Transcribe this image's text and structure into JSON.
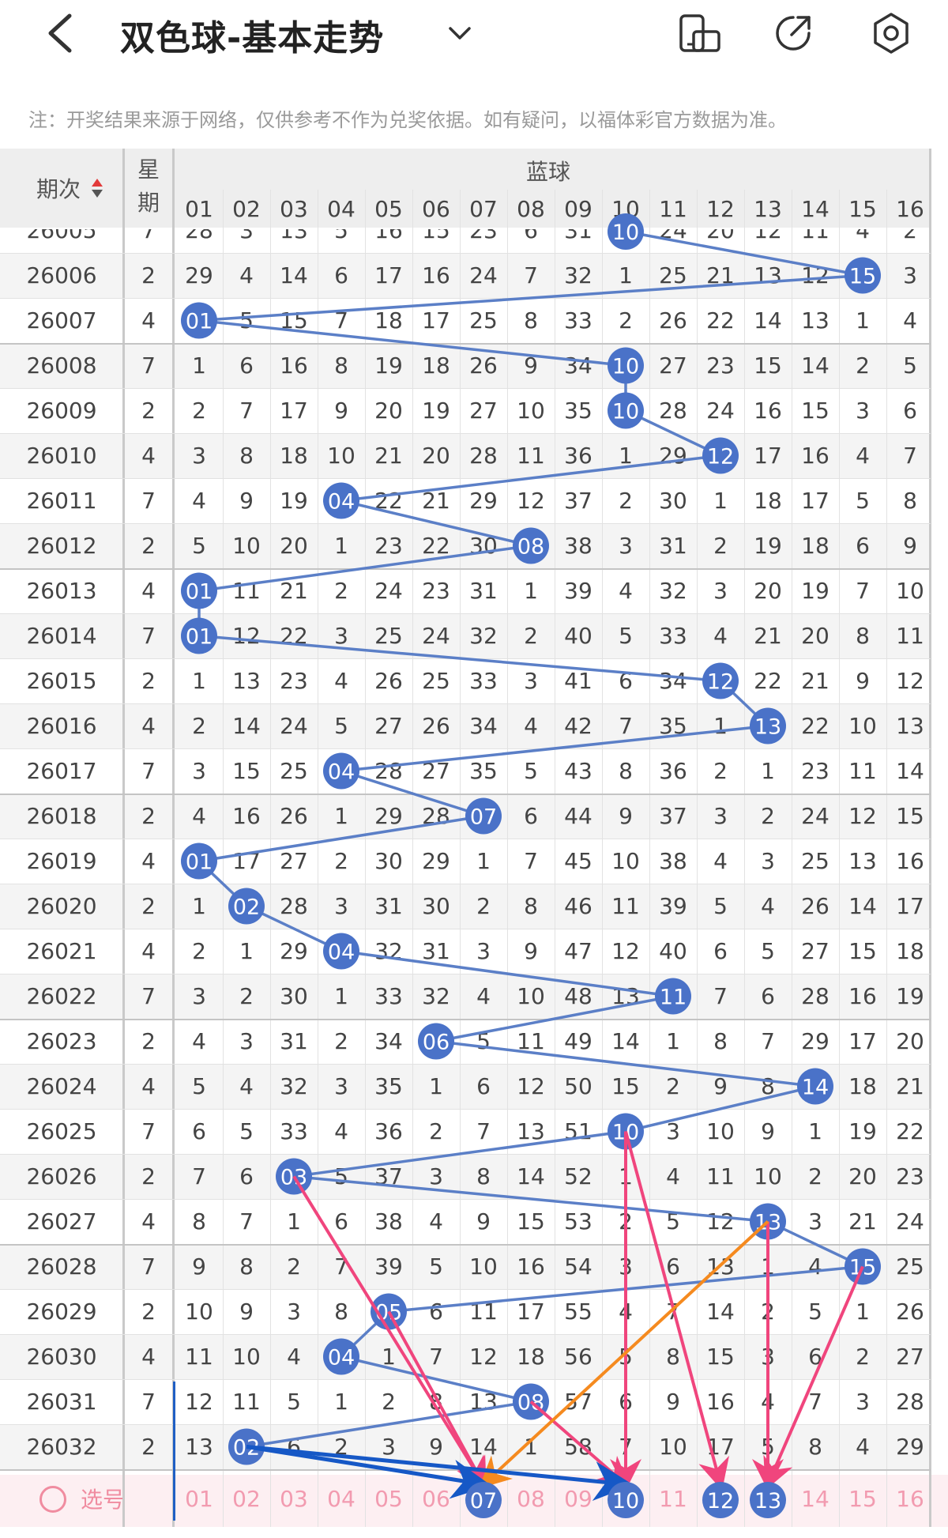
{
  "header": {
    "title": "双色球-基本走势",
    "notice": "注：开奖结果来源于网络，仅供参考不作为兑奖依据。如有疑问，以福体彩官方数据为准。"
  },
  "columns": {
    "period": "期次",
    "week": "星期",
    "blue": "蓝球",
    "numbers": [
      "01",
      "02",
      "03",
      "04",
      "05",
      "06",
      "07",
      "08",
      "09",
      "10",
      "11",
      "12",
      "13",
      "14",
      "15",
      "16"
    ]
  },
  "table": {
    "partial_row": {
      "period": "26005",
      "week": "7",
      "cells": [
        28,
        3,
        13,
        5,
        16,
        15,
        23,
        6,
        31,
        "10",
        24,
        20,
        12,
        11,
        4,
        2
      ]
    },
    "rows": [
      {
        "period": "26006",
        "week": "2",
        "hit": 15,
        "cells": [
          29,
          4,
          14,
          6,
          17,
          16,
          24,
          7,
          32,
          1,
          25,
          21,
          13,
          12,
          "15",
          3
        ]
      },
      {
        "period": "26007",
        "week": "4",
        "hit": 1,
        "cells": [
          "01",
          5,
          15,
          7,
          18,
          17,
          25,
          8,
          33,
          2,
          26,
          22,
          14,
          13,
          1,
          4
        ]
      },
      {
        "period": "26008",
        "week": "7",
        "hit": 10,
        "cells": [
          1,
          6,
          16,
          8,
          19,
          18,
          26,
          9,
          34,
          "10",
          27,
          23,
          15,
          14,
          2,
          5
        ]
      },
      {
        "period": "26009",
        "week": "2",
        "hit": 10,
        "cells": [
          2,
          7,
          17,
          9,
          20,
          19,
          27,
          10,
          35,
          "10",
          28,
          24,
          16,
          15,
          3,
          6
        ]
      },
      {
        "period": "26010",
        "week": "4",
        "hit": 12,
        "cells": [
          3,
          8,
          18,
          10,
          21,
          20,
          28,
          11,
          36,
          1,
          29,
          "12",
          17,
          16,
          4,
          7
        ]
      },
      {
        "period": "26011",
        "week": "7",
        "hit": 4,
        "cells": [
          4,
          9,
          19,
          "04",
          22,
          21,
          29,
          12,
          37,
          2,
          30,
          1,
          18,
          17,
          5,
          8
        ]
      },
      {
        "period": "26012",
        "week": "2",
        "hit": 8,
        "cells": [
          5,
          10,
          20,
          1,
          23,
          22,
          30,
          "08",
          38,
          3,
          31,
          2,
          19,
          18,
          6,
          9
        ]
      },
      {
        "period": "26013",
        "week": "4",
        "hit": 1,
        "cells": [
          "01",
          11,
          21,
          2,
          24,
          23,
          31,
          1,
          39,
          4,
          32,
          3,
          20,
          19,
          7,
          10
        ]
      },
      {
        "period": "26014",
        "week": "7",
        "hit": 1,
        "cells": [
          "01",
          12,
          22,
          3,
          25,
          24,
          32,
          2,
          40,
          5,
          33,
          4,
          21,
          20,
          8,
          11
        ]
      },
      {
        "period": "26015",
        "week": "2",
        "hit": 12,
        "cells": [
          1,
          13,
          23,
          4,
          26,
          25,
          33,
          3,
          41,
          6,
          34,
          "12",
          22,
          21,
          9,
          12
        ]
      },
      {
        "period": "26016",
        "week": "4",
        "hit": 13,
        "cells": [
          2,
          14,
          24,
          5,
          27,
          26,
          34,
          4,
          42,
          7,
          35,
          1,
          "13",
          22,
          10,
          13
        ]
      },
      {
        "period": "26017",
        "week": "7",
        "hit": 4,
        "cells": [
          3,
          15,
          25,
          "04",
          28,
          27,
          35,
          5,
          43,
          8,
          36,
          2,
          1,
          23,
          11,
          14
        ]
      },
      {
        "period": "26018",
        "week": "2",
        "hit": 7,
        "cells": [
          4,
          16,
          26,
          1,
          29,
          28,
          "07",
          6,
          44,
          9,
          37,
          3,
          2,
          24,
          12,
          15
        ]
      },
      {
        "period": "26019",
        "week": "4",
        "hit": 1,
        "cells": [
          "01",
          17,
          27,
          2,
          30,
          29,
          1,
          7,
          45,
          10,
          38,
          4,
          3,
          25,
          13,
          16
        ]
      },
      {
        "period": "26020",
        "week": "2",
        "hit": 2,
        "cells": [
          1,
          "02",
          28,
          3,
          31,
          30,
          2,
          8,
          46,
          11,
          39,
          5,
          4,
          26,
          14,
          17
        ]
      },
      {
        "period": "26021",
        "week": "4",
        "hit": 4,
        "cells": [
          2,
          1,
          29,
          "04",
          32,
          31,
          3,
          9,
          47,
          12,
          40,
          6,
          5,
          27,
          15,
          18
        ]
      },
      {
        "period": "26022",
        "week": "7",
        "hit": 11,
        "cells": [
          3,
          2,
          30,
          1,
          33,
          32,
          4,
          10,
          48,
          13,
          "11",
          7,
          6,
          28,
          16,
          19
        ]
      },
      {
        "period": "26023",
        "week": "2",
        "hit": 6,
        "cells": [
          4,
          3,
          31,
          2,
          34,
          "06",
          5,
          11,
          49,
          14,
          1,
          8,
          7,
          29,
          17,
          20
        ]
      },
      {
        "period": "26024",
        "week": "4",
        "hit": 14,
        "cells": [
          5,
          4,
          32,
          3,
          35,
          1,
          6,
          12,
          50,
          15,
          2,
          9,
          8,
          "14",
          18,
          21
        ]
      },
      {
        "period": "26025",
        "week": "7",
        "hit": 10,
        "cells": [
          6,
          5,
          33,
          4,
          36,
          2,
          7,
          13,
          51,
          "10",
          3,
          10,
          9,
          1,
          19,
          22
        ]
      },
      {
        "period": "26026",
        "week": "2",
        "hit": 3,
        "cells": [
          7,
          6,
          "03",
          5,
          37,
          3,
          8,
          14,
          52,
          1,
          4,
          11,
          10,
          2,
          20,
          23
        ]
      },
      {
        "period": "26027",
        "week": "4",
        "hit": 13,
        "cells": [
          8,
          7,
          1,
          6,
          38,
          4,
          9,
          15,
          53,
          2,
          5,
          12,
          "13",
          3,
          21,
          24
        ]
      },
      {
        "period": "26028",
        "week": "7",
        "hit": 15,
        "cells": [
          9,
          8,
          2,
          7,
          39,
          5,
          10,
          16,
          54,
          3,
          6,
          13,
          1,
          4,
          "15",
          25
        ]
      },
      {
        "period": "26029",
        "week": "2",
        "hit": 5,
        "cells": [
          10,
          9,
          3,
          8,
          "05",
          6,
          11,
          17,
          55,
          4,
          7,
          14,
          2,
          5,
          1,
          26
        ]
      },
      {
        "period": "26030",
        "week": "4",
        "hit": 4,
        "cells": [
          11,
          10,
          4,
          "04",
          1,
          7,
          12,
          18,
          56,
          5,
          8,
          15,
          3,
          6,
          2,
          27
        ]
      },
      {
        "period": "26031",
        "week": "7",
        "hit": 8,
        "cells": [
          12,
          11,
          5,
          1,
          2,
          8,
          13,
          "08",
          57,
          6,
          9,
          16,
          4,
          7,
          3,
          28
        ]
      },
      {
        "period": "26032",
        "week": "2",
        "hit": 2,
        "cells": [
          13,
          "02",
          6,
          2,
          3,
          9,
          14,
          1,
          58,
          7,
          10,
          17,
          5,
          8,
          4,
          29
        ]
      }
    ]
  },
  "select_row": {
    "label": "选号",
    "numbers": [
      "01",
      "02",
      "03",
      "04",
      "05",
      "06",
      "07",
      "08",
      "09",
      "10",
      "11",
      "12",
      "13",
      "14",
      "15",
      "16"
    ],
    "selected": [
      7,
      10,
      12,
      13
    ]
  },
  "colors": {
    "ball": "#4a72c8",
    "trend_line": "#5b7fc7",
    "pink_arrow": "#f0457d",
    "orange_arrow": "#f58a1f",
    "blue_arrow": "#1658c6"
  }
}
